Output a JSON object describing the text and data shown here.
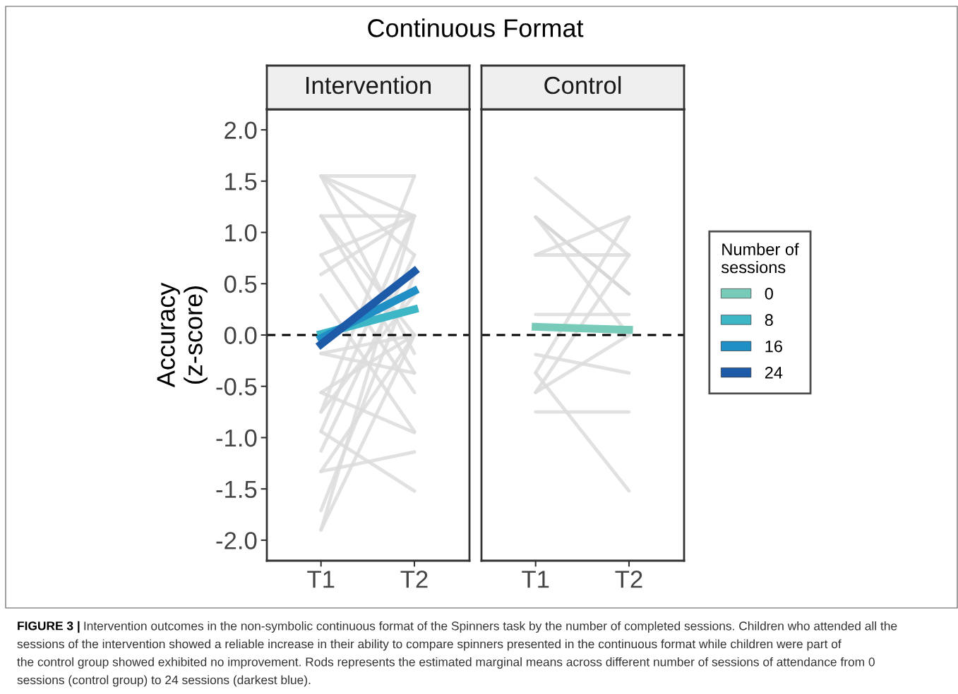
{
  "chart_data": [
    {
      "type": "line",
      "title": "Continuous Format",
      "subtitle": "Intervention",
      "ylabel": "Accuracy\n(z-score)",
      "categories": [
        "T1",
        "T2"
      ],
      "ylim": [
        -2.2,
        2.2
      ],
      "yticks": [
        {
          "value": -2,
          "label": "-2.0"
        },
        {
          "value": -1.5,
          "label": "-1.5"
        },
        {
          "value": -1,
          "label": "-1.0"
        },
        {
          "value": -0.5,
          "label": "-0.5"
        },
        {
          "value": 0,
          "label": "0.0"
        },
        {
          "value": 0.5,
          "label": "0.5"
        },
        {
          "value": 1,
          "label": "1.0"
        },
        {
          "value": 1.5,
          "label": "1.5"
        },
        {
          "value": 2,
          "label": "2.0"
        }
      ],
      "grid": false,
      "legend": "right",
      "ref_lines": [
        {
          "axis": "y",
          "value": 0,
          "color": "#000000",
          "line_style": "dashed"
        }
      ],
      "annotations": [
        "FIGURE 3 |",
        "Intervention outcomes in the non-symbolic continuous format of the Spinners task by the number of completed sessions. Children who attended all the\nsessions of the intervention showed a reliable increase in their ability to compare spinners presented in the continuous format while children were part of\nthe control group showed exhibited no improvement. Rods represents the estimated marginal means across different number of sessions of attendance from 0\nsessions (control group) to 24 sessions (darkest blue)."
      ],
      "series": [
        {
          "color": "#dcdcdc",
          "values": [
            1.55,
            1.55
          ]
        },
        {
          "color": "#dcdcdc",
          "values": [
            1.55,
            1.16
          ]
        },
        {
          "color": "#dcdcdc",
          "values": [
            1.55,
            0.78
          ]
        },
        {
          "color": "#dcdcdc",
          "values": [
            1.55,
            -0.18
          ]
        },
        {
          "color": "#dcdcdc",
          "values": [
            1.16,
            1.16
          ]
        },
        {
          "color": "#dcdcdc",
          "values": [
            1.16,
            0.0
          ]
        },
        {
          "color": "#dcdcdc",
          "values": [
            1.16,
            -0.37
          ]
        },
        {
          "color": "#dcdcdc",
          "values": [
            0.78,
            1.16
          ]
        },
        {
          "color": "#dcdcdc",
          "values": [
            0.78,
            -0.56
          ]
        },
        {
          "color": "#dcdcdc",
          "values": [
            0.59,
            1.16
          ]
        },
        {
          "color": "#dcdcdc",
          "values": [
            0.39,
            -0.94
          ]
        },
        {
          "color": "#dcdcdc",
          "values": [
            -0.18,
            0.0
          ]
        },
        {
          "color": "#dcdcdc",
          "values": [
            -0.18,
            -0.37
          ]
        },
        {
          "color": "#dcdcdc",
          "values": [
            -0.56,
            0.0
          ]
        },
        {
          "color": "#dcdcdc",
          "values": [
            -0.56,
            -0.95
          ]
        },
        {
          "color": "#dcdcdc",
          "values": [
            -0.75,
            1.55
          ]
        },
        {
          "color": "#dcdcdc",
          "values": [
            -0.75,
            0.39
          ]
        },
        {
          "color": "#dcdcdc",
          "values": [
            -0.94,
            -1.52
          ]
        },
        {
          "color": "#dcdcdc",
          "values": [
            -0.94,
            1.16
          ]
        },
        {
          "color": "#dcdcdc",
          "values": [
            -1.13,
            0.78
          ]
        },
        {
          "color": "#dcdcdc",
          "values": [
            -1.33,
            -1.14
          ]
        },
        {
          "color": "#dcdcdc",
          "values": [
            -1.33,
            0.0
          ]
        },
        {
          "color": "#dcdcdc",
          "values": [
            -1.71,
            0.59
          ]
        },
        {
          "color": "#dcdcdc",
          "values": [
            -1.9,
            1.16
          ]
        },
        {
          "color": "#dcdcdc",
          "values": [
            -1.9,
            0.0
          ]
        },
        {
          "name": "8",
          "color": "#3db6c6",
          "values": [
            0.01,
            0.25
          ]
        },
        {
          "name": "16",
          "color": "#1f8fc5",
          "values": [
            -0.03,
            0.43
          ]
        },
        {
          "name": "24",
          "color": "#1d5aa8",
          "values": [
            -0.09,
            0.62
          ]
        }
      ]
    },
    {
      "type": "line",
      "subtitle": "Control",
      "categories": [
        "T1",
        "T2"
      ],
      "ylim": [
        -2.2,
        2.2
      ],
      "tick_labels": "x",
      "grid": false,
      "legend": "right",
      "legend_title": "Number of\nsessions",
      "ref_lines": [
        {
          "axis": "y",
          "value": 0,
          "color": "#000000",
          "line_style": "dashed"
        }
      ],
      "series": [
        {
          "color": "#dcdcdc",
          "values": [
            1.53,
            0.78
          ]
        },
        {
          "color": "#d0d0d0",
          "values": [
            1.15,
            0.4
          ]
        },
        {
          "color": "#dcdcdc",
          "values": [
            1.15,
            0.0
          ]
        },
        {
          "color": "#dcdcdc",
          "values": [
            0.78,
            1.15
          ]
        },
        {
          "color": "#dcdcdc",
          "values": [
            0.78,
            0.78
          ]
        },
        {
          "color": "#dcdcdc",
          "values": [
            0.2,
            0.2
          ]
        },
        {
          "color": "#dcdcdc",
          "values": [
            -0.19,
            -0.37
          ]
        },
        {
          "color": "#dcdcdc",
          "values": [
            -0.37,
            1.15
          ]
        },
        {
          "color": "#dcdcdc",
          "values": [
            -0.56,
            0.78
          ]
        },
        {
          "color": "#dcdcdc",
          "values": [
            -0.56,
            0.0
          ]
        },
        {
          "color": "#dcdcdc",
          "values": [
            -0.37,
            -1.52
          ]
        },
        {
          "color": "#dcdcdc",
          "values": [
            -0.75,
            -0.75
          ]
        },
        {
          "name": "0",
          "color": "#78cbb9",
          "values": [
            0.08,
            0.05
          ]
        }
      ]
    }
  ]
}
